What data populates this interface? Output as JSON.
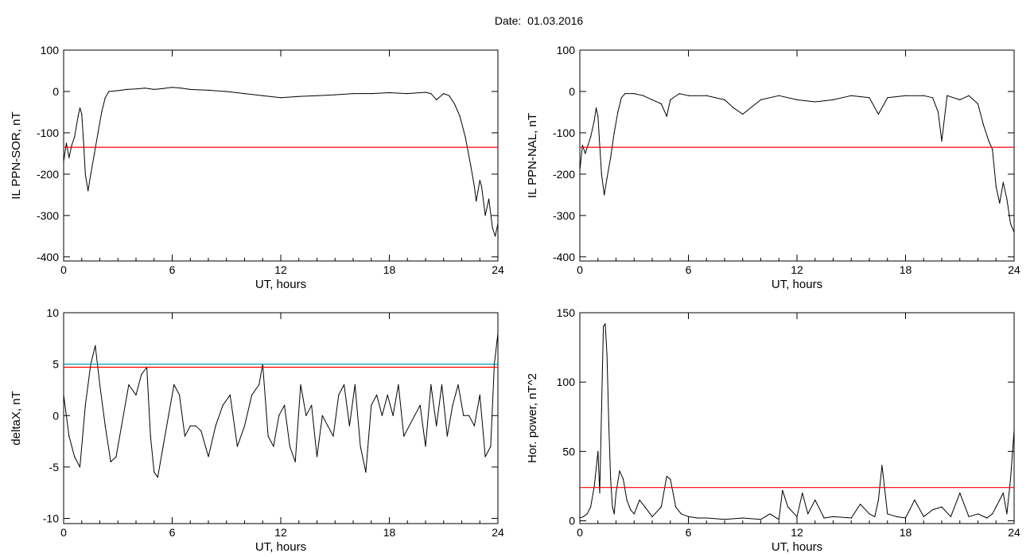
{
  "header": {
    "date_label": "Date:",
    "date_value": "01.03.2016"
  },
  "chart_data": [
    {
      "type": "line",
      "panel": "top-left",
      "xlabel": "UT, hours",
      "ylabel": "IL PPN-SOR, nT",
      "xlim": [
        0,
        24
      ],
      "ylim": [
        -410,
        100
      ],
      "xticks": [
        0,
        6,
        12,
        18,
        24
      ],
      "yticks": [
        100,
        0,
        -100,
        -200,
        -300,
        -400
      ],
      "series": [
        {
          "color": "#000000",
          "x": [
            0,
            0.15,
            0.3,
            0.45,
            0.6,
            0.8,
            0.9,
            1.0,
            1.1,
            1.2,
            1.35,
            1.5,
            1.7,
            1.9,
            2.1,
            2.3,
            2.5,
            3,
            3.5,
            4,
            4.5,
            5,
            5.5,
            6,
            6.5,
            7,
            8,
            9,
            10,
            11,
            12,
            13,
            14,
            15,
            16,
            17,
            18,
            19,
            20,
            20.3,
            20.6,
            21,
            21.3,
            21.6,
            21.9,
            22.2,
            22.5,
            22.7,
            22.8,
            22.9,
            23.0,
            23.1,
            23.3,
            23.5,
            23.7,
            23.85,
            24
          ],
          "y": [
            -170,
            -125,
            -160,
            -130,
            -110,
            -60,
            -40,
            -55,
            -120,
            -200,
            -240,
            -200,
            -150,
            -100,
            -50,
            -15,
            0,
            2,
            5,
            6,
            8,
            5,
            7,
            10,
            8,
            5,
            3,
            0,
            -5,
            -10,
            -15,
            -12,
            -10,
            -8,
            -5,
            -5,
            -3,
            -5,
            -2,
            -5,
            -20,
            -5,
            -10,
            -30,
            -60,
            -110,
            -180,
            -230,
            -265,
            -240,
            -215,
            -230,
            -300,
            -260,
            -330,
            -350,
            -320
          ]
        },
        {
          "color": "#ff0000",
          "y_const": -135
        }
      ]
    },
    {
      "type": "line",
      "panel": "top-right",
      "xlabel": "UT, hours",
      "ylabel": "IL PPN-NAL, nT",
      "xlim": [
        0,
        24
      ],
      "ylim": [
        -410,
        100
      ],
      "xticks": [
        0,
        6,
        12,
        18,
        24
      ],
      "yticks": [
        100,
        0,
        -100,
        -200,
        -300,
        -400
      ],
      "series": [
        {
          "color": "#000000",
          "x": [
            0,
            0.15,
            0.3,
            0.45,
            0.6,
            0.8,
            0.9,
            1.0,
            1.1,
            1.2,
            1.35,
            1.5,
            1.7,
            1.9,
            2.1,
            2.3,
            2.5,
            3,
            3.5,
            4,
            4.5,
            4.8,
            5,
            5.5,
            6,
            7,
            8,
            8.5,
            9,
            10,
            11,
            12,
            13,
            14,
            15,
            16,
            16.5,
            17,
            18,
            19,
            19.5,
            19.8,
            20,
            20.3,
            21,
            21.5,
            22,
            22.3,
            22.6,
            22.8,
            23.0,
            23.2,
            23.4,
            23.6,
            23.8,
            24
          ],
          "y": [
            -190,
            -130,
            -150,
            -130,
            -110,
            -70,
            -40,
            -60,
            -130,
            -200,
            -250,
            -210,
            -160,
            -100,
            -50,
            -15,
            -5,
            -5,
            -10,
            -20,
            -30,
            -60,
            -20,
            -5,
            -10,
            -10,
            -20,
            -40,
            -55,
            -20,
            -10,
            -20,
            -25,
            -20,
            -10,
            -15,
            -55,
            -15,
            -10,
            -10,
            -15,
            -50,
            -120,
            -10,
            -20,
            -10,
            -30,
            -80,
            -120,
            -140,
            -230,
            -270,
            -220,
            -260,
            -320,
            -340
          ]
        },
        {
          "color": "#ff0000",
          "y_const": -135
        }
      ]
    },
    {
      "type": "line",
      "panel": "bottom-left",
      "xlabel": "UT, hours",
      "ylabel": "deltaX, nT",
      "xlim": [
        0,
        24
      ],
      "ylim": [
        -10.5,
        10
      ],
      "xticks": [
        0,
        6,
        12,
        18,
        24
      ],
      "yticks": [
        10,
        5,
        0,
        -5,
        -10
      ],
      "series": [
        {
          "color": "#000000",
          "x": [
            0,
            0.3,
            0.6,
            0.9,
            1.2,
            1.5,
            1.75,
            2.0,
            2.3,
            2.6,
            2.9,
            3.2,
            3.6,
            4.0,
            4.3,
            4.6,
            4.8,
            5.0,
            5.2,
            5.5,
            5.8,
            6.1,
            6.4,
            6.7,
            7.0,
            7.3,
            7.6,
            8.0,
            8.4,
            8.8,
            9.2,
            9.6,
            10.0,
            10.4,
            10.8,
            11.0,
            11.3,
            11.6,
            11.9,
            12.2,
            12.5,
            12.8,
            13.1,
            13.4,
            13.7,
            14.0,
            14.3,
            14.6,
            14.9,
            15.2,
            15.5,
            15.8,
            16.1,
            16.4,
            16.7,
            17.0,
            17.3,
            17.6,
            17.9,
            18.2,
            18.5,
            18.8,
            19.1,
            19.4,
            19.7,
            20.0,
            20.3,
            20.6,
            20.9,
            21.2,
            21.5,
            21.8,
            22.1,
            22.4,
            22.7,
            23.0,
            23.3,
            23.6,
            23.8,
            24
          ],
          "y": [
            2,
            -2,
            -4,
            -5,
            1,
            5,
            6.8,
            3,
            -1,
            -4.5,
            -4,
            -1,
            3,
            2,
            4,
            4.7,
            -2,
            -5.5,
            -6,
            -3,
            0,
            3,
            2,
            -2,
            -1,
            -1,
            -1.5,
            -4,
            -1,
            1,
            2,
            -3,
            -1,
            2,
            3,
            5,
            -2,
            -3,
            0,
            1,
            -3,
            -4.5,
            3,
            0,
            1,
            -4,
            0,
            -1,
            -2,
            2,
            3,
            -1,
            3,
            -3,
            -5.5,
            1,
            2,
            0,
            2,
            0,
            3,
            -2,
            -1,
            0,
            1,
            -3,
            3,
            -1,
            3,
            -2,
            1,
            3,
            0,
            0,
            -1,
            2,
            -4,
            -3,
            5,
            8
          ]
        },
        {
          "color": "#ff0000",
          "y_const": 4.7
        },
        {
          "color": "#00a0c8",
          "y_const": 5.0
        }
      ]
    },
    {
      "type": "line",
      "panel": "bottom-right",
      "xlabel": "UT, hours",
      "ylabel": "Hor. power, nT^2",
      "xlim": [
        0,
        24
      ],
      "ylim": [
        -2,
        150
      ],
      "xticks": [
        0,
        6,
        12,
        18,
        24
      ],
      "yticks": [
        150,
        100,
        50,
        0
      ],
      "series": [
        {
          "color": "#000000",
          "x": [
            0,
            0.2,
            0.4,
            0.6,
            0.8,
            1.0,
            1.1,
            1.2,
            1.3,
            1.4,
            1.5,
            1.6,
            1.7,
            1.8,
            1.9,
            2.0,
            2.2,
            2.4,
            2.6,
            2.8,
            3.0,
            3.3,
            3.6,
            4.0,
            4.5,
            4.8,
            5.0,
            5.3,
            5.6,
            6.0,
            6.5,
            7,
            8,
            9,
            10,
            10.5,
            11,
            11.2,
            11.5,
            12,
            12.3,
            12.6,
            13,
            13.5,
            14,
            15,
            15.5,
            16,
            16.3,
            16.5,
            16.7,
            17,
            17.5,
            18,
            18.5,
            19,
            19.5,
            20,
            20.5,
            21,
            21.5,
            22,
            22.5,
            22.8,
            23.0,
            23.2,
            23.4,
            23.6,
            23.8,
            24
          ],
          "y": [
            2,
            3,
            5,
            10,
            25,
            50,
            20,
            80,
            140,
            142,
            120,
            70,
            30,
            10,
            5,
            20,
            36,
            30,
            15,
            8,
            5,
            15,
            10,
            3,
            10,
            32,
            30,
            10,
            5,
            3,
            2,
            2,
            1,
            2,
            1,
            5,
            1,
            22,
            10,
            3,
            20,
            5,
            15,
            2,
            3,
            2,
            12,
            5,
            3,
            15,
            40,
            5,
            3,
            2,
            15,
            3,
            8,
            10,
            3,
            20,
            3,
            5,
            2,
            5,
            10,
            15,
            20,
            5,
            30,
            65
          ]
        },
        {
          "color": "#ff0000",
          "y_const": 24
        }
      ]
    }
  ]
}
